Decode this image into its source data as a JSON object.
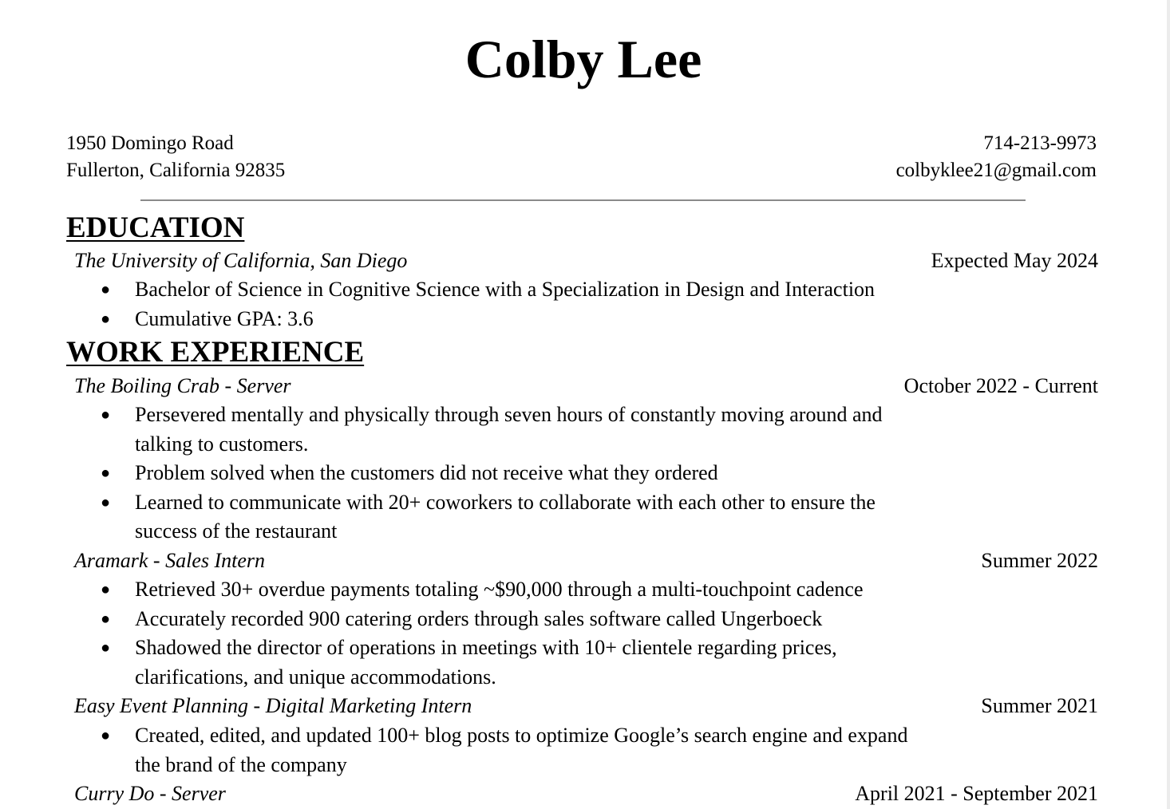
{
  "header": {
    "name": "Colby Lee",
    "address_line1": "1950 Domingo Road",
    "address_line2": "Fullerton, California 92835",
    "phone": "714-213-9973",
    "email": "colbyklee21@gmail.com"
  },
  "education": {
    "heading": "EDUCATION",
    "entries": [
      {
        "title": "The University of California, San Diego",
        "date": "Expected May 2024",
        "bullets": [
          "Bachelor of Science in Cognitive Science with a Specialization in Design and Interaction",
          "Cumulative GPA: 3.6"
        ]
      }
    ]
  },
  "work": {
    "heading": "WORK EXPERIENCE",
    "entries": [
      {
        "title": "The Boiling Crab - Server",
        "date": "October 2022 - Current",
        "bullets": [
          "Persevered mentally and physically through seven hours of constantly moving around and talking to customers.",
          "Problem solved when the customers did not receive what they ordered",
          "Learned to communicate with 20+ coworkers to collaborate with each other to ensure the success of the restaurant"
        ]
      },
      {
        "title": "Aramark - Sales Intern",
        "date": "Summer 2022",
        "bullets": [
          "Retrieved 30+ overdue payments totaling ~$90,000 through a multi-touchpoint cadence",
          "Accurately recorded 900 catering orders through sales software called Ungerboeck",
          "Shadowed the director of operations in meetings with 10+ clientele regarding prices, clarifications, and unique accommodations."
        ]
      },
      {
        "title": "Easy Event Planning - Digital Marketing Intern",
        "date": "Summer 2021",
        "bullets": [
          "Created, edited, and updated 100+ blog posts to optimize Google’s search engine and expand the brand of the company"
        ]
      },
      {
        "title": "Curry Do - Server",
        "date": "April 2021 - September 2021",
        "bullets": []
      }
    ]
  }
}
